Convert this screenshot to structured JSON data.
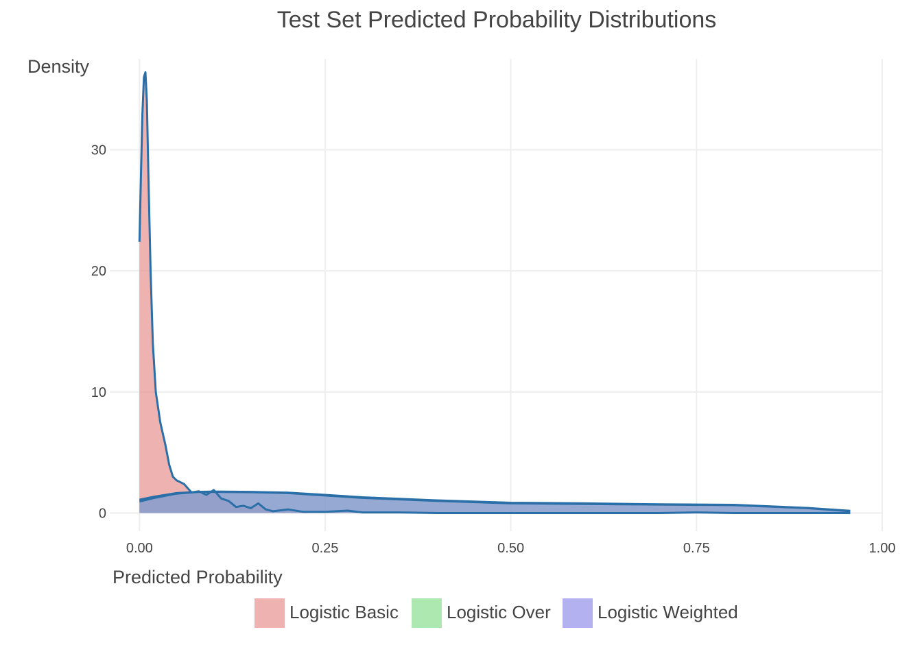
{
  "chart_data": {
    "type": "area",
    "title": "Test Set Predicted Probability Distributions",
    "xlabel": "Predicted Probability",
    "ylabel": "Density",
    "xlim": [
      -0.04,
      1.0
    ],
    "ylim": [
      -1.5,
      37.5
    ],
    "x_ticks": [
      0.0,
      0.25,
      0.5,
      0.75,
      1.0
    ],
    "x_tick_labels": [
      "0.00",
      "0.25",
      "0.50",
      "0.75",
      "1.00"
    ],
    "y_ticks": [
      0,
      10,
      20,
      30
    ],
    "y_tick_labels": [
      "0",
      "10",
      "20",
      "30"
    ],
    "grid": true,
    "legend_position": "bottom",
    "series": [
      {
        "name": "Logistic Basic",
        "color": "#e58a86",
        "line_color": "#2a6fa8",
        "x": [
          0.0,
          0.002,
          0.004,
          0.006,
          0.008,
          0.01,
          0.012,
          0.015,
          0.018,
          0.022,
          0.028,
          0.035,
          0.04,
          0.045,
          0.05,
          0.06,
          0.07,
          0.08,
          0.09,
          0.1,
          0.11,
          0.12,
          0.13,
          0.14,
          0.15,
          0.16,
          0.17,
          0.18,
          0.2,
          0.22,
          0.25,
          0.28,
          0.3,
          0.35,
          0.4,
          0.5,
          0.6,
          0.7,
          0.75,
          0.8,
          0.9,
          0.957
        ],
        "y": [
          22.4,
          28.0,
          33.0,
          36.0,
          36.4,
          34.0,
          28.0,
          20.0,
          14.0,
          10.0,
          7.5,
          5.6,
          4.0,
          3.0,
          2.7,
          2.4,
          1.7,
          1.8,
          1.5,
          1.9,
          1.2,
          1.0,
          0.5,
          0.6,
          0.4,
          0.8,
          0.3,
          0.15,
          0.3,
          0.1,
          0.1,
          0.2,
          0.05,
          0.05,
          0.0,
          0.0,
          0.0,
          0.0,
          0.05,
          0.0,
          0.0,
          0.0
        ]
      },
      {
        "name": "Logistic Over",
        "color": "#7fdc84",
        "line_color": "#2a6fa8",
        "x": [
          0.0,
          0.02,
          0.05,
          0.08,
          0.1,
          0.15,
          0.2,
          0.25,
          0.3,
          0.4,
          0.5,
          0.6,
          0.7,
          0.8,
          0.9,
          0.957
        ],
        "y": [
          1.1,
          1.35,
          1.65,
          1.75,
          1.75,
          1.72,
          1.65,
          1.45,
          1.25,
          1.0,
          0.8,
          0.75,
          0.7,
          0.65,
          0.4,
          0.15
        ]
      },
      {
        "name": "Logistic Weighted",
        "color": "#8b87e6",
        "line_color": "#2a6fa8",
        "x": [
          0.0,
          0.02,
          0.05,
          0.08,
          0.1,
          0.15,
          0.2,
          0.25,
          0.3,
          0.4,
          0.5,
          0.6,
          0.7,
          0.8,
          0.9,
          0.957
        ],
        "y": [
          0.95,
          1.25,
          1.6,
          1.75,
          1.78,
          1.75,
          1.68,
          1.5,
          1.3,
          1.05,
          0.85,
          0.8,
          0.72,
          0.68,
          0.42,
          0.18
        ]
      }
    ]
  }
}
